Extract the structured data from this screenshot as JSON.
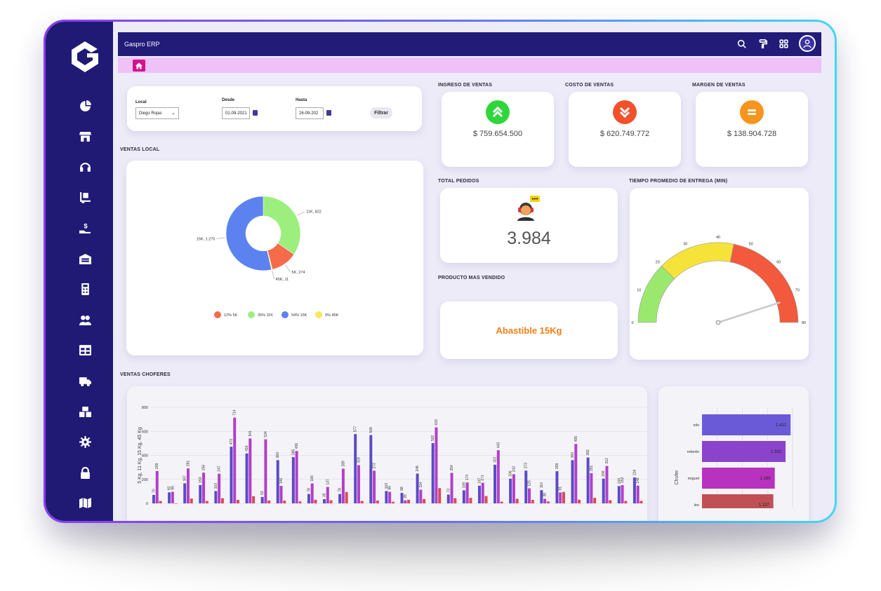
{
  "app": {
    "title": "Gaspro ERP"
  },
  "sidebar": {
    "items": [
      {
        "icon": "pie-chart-icon"
      },
      {
        "icon": "store-icon"
      },
      {
        "icon": "headset-icon"
      },
      {
        "icon": "dolly-icon"
      },
      {
        "icon": "hand-dollar-icon"
      },
      {
        "icon": "warehouse-icon"
      },
      {
        "icon": "calculator-icon"
      },
      {
        "icon": "users-icon"
      },
      {
        "icon": "table-icon"
      },
      {
        "icon": "truck-icon"
      },
      {
        "icon": "boxes-icon"
      },
      {
        "icon": "gear-icon"
      },
      {
        "icon": "lock-icon"
      },
      {
        "icon": "map-icon"
      }
    ]
  },
  "filters": {
    "local_label": "Local",
    "local_value": "Diego Rojas",
    "desde_label": "Desde",
    "desde_value": "01-09-2021",
    "hasta_label": "Hasta",
    "hasta_value": "26-09-202",
    "filter_label": "Filtrar"
  },
  "kpis": {
    "ingreso": {
      "label": "INGRESO DE VENTAS",
      "value": "$ 759.654.500",
      "color": "#2fd63b"
    },
    "costo": {
      "label": "COSTO DE VENTAS",
      "value": "$ 620.749.772",
      "color": "#f2512b"
    },
    "margen": {
      "label": "MARGEN DE VENTAS",
      "value": "$ 138.904.728",
      "color": "#f7941d"
    }
  },
  "pedidos": {
    "label": "TOTAL PEDIDOS",
    "value": "3.984"
  },
  "producto": {
    "label": "PRODUCTO MAS VENDIDO",
    "value": "Abastible 15Kg"
  },
  "sections": {
    "ventas_local": "VENTAS LOCAL",
    "tiempo": "TIEMPO PROMEDIO DE ENTREGA (MIN)",
    "ventas_choferes": "VENTAS CHOFERES"
  },
  "chart_data": [
    {
      "type": "pie",
      "title": "",
      "categories": [
        "11K",
        "5K",
        "45K",
        "15K"
      ],
      "values": [
        822,
        274,
        11,
        1275
      ],
      "slice_labels": [
        "11K, 822",
        "5K, 274",
        "45K, 11",
        "15K, 1.275"
      ],
      "colors": [
        "#9cef7c",
        "#f66b4c",
        "#f4ea5a",
        "#5b82ef"
      ],
      "legend": [
        {
          "text": "12% 5K",
          "color": "#f66b4c"
        },
        {
          "text": "35% 11K",
          "color": "#9cef7c"
        },
        {
          "text": "54% 15K",
          "color": "#5b82ef"
        },
        {
          "text": "0% 45K",
          "color": "#f4ea5a"
        }
      ],
      "legend_position": "bottom"
    },
    {
      "type": "gauge",
      "title": "",
      "ticks": [
        0,
        10,
        20,
        30,
        40,
        50,
        60,
        70,
        80
      ],
      "range": [
        0,
        80
      ],
      "bands": [
        {
          "from": 0,
          "to": 20,
          "color": "#9be86f"
        },
        {
          "from": 20,
          "to": 45,
          "color": "#f6e33a"
        },
        {
          "from": 45,
          "to": 80,
          "color": "#f2593d"
        }
      ],
      "value": 72
    },
    {
      "type": "bar",
      "title": "",
      "ylabel": "5 Kg, 11 Kg, 15 Kg, 45 Kg",
      "ylim": [
        0,
        800
      ],
      "yticks": [
        0,
        200,
        400,
        600,
        800
      ],
      "grid": true,
      "series_colors": [
        "#5b4bc4",
        "#b23fc8",
        "#d94b56"
      ],
      "groups": [
        [
          70,
          269,
          20
        ],
        [
          92,
          96,
          0
        ],
        [
          167,
          291,
          40
        ],
        [
          153,
          256,
          20
        ],
        [
          103,
          247,
          43
        ],
        [
          472,
          714,
          29
        ],
        [
          416,
          541,
          60
        ],
        [
          53,
          534,
          24
        ],
        [
          360,
          146,
          23
        ],
        [
          385,
          436,
          16
        ],
        [
          78,
          166,
          30
        ],
        [
          35,
          137,
          26
        ],
        [
          78,
          289,
          95
        ],
        [
          577,
          318,
          20
        ],
        [
          569,
          272,
          24
        ],
        [
          103,
          96,
          13
        ],
        [
          88,
          25,
          30
        ],
        [
          248,
          114,
          36
        ],
        [
          502,
          633,
          127
        ],
        [
          73,
          254,
          43
        ],
        [
          109,
          174,
          46
        ],
        [
          147,
          171,
          61
        ],
        [
          322,
          443,
          14
        ],
        [
          206,
          243,
          38
        ],
        [
          273,
          125,
          29
        ],
        [
          110,
          38,
          16
        ],
        [
          268,
          91,
          95
        ],
        [
          360,
          495,
          30
        ],
        [
          382,
          251,
          46
        ],
        [
          206,
          312,
          26
        ],
        [
          144,
          152,
          20
        ],
        [
          216,
          148,
          21
        ]
      ]
    },
    {
      "type": "bar",
      "orientation": "horizontal",
      "title": "",
      "ylabel": "Chofer",
      "categories": [
        "nilo",
        "roberto",
        "miguel",
        "leo"
      ],
      "values": [
        1412,
        1332,
        1160,
        1137
      ],
      "value_labels": [
        "1.412",
        "1.332",
        "1.160",
        "1.137"
      ],
      "colors": [
        "#6b5ad8",
        "#8a44cc",
        "#b832c0",
        "#c05055"
      ],
      "grid": true
    }
  ]
}
